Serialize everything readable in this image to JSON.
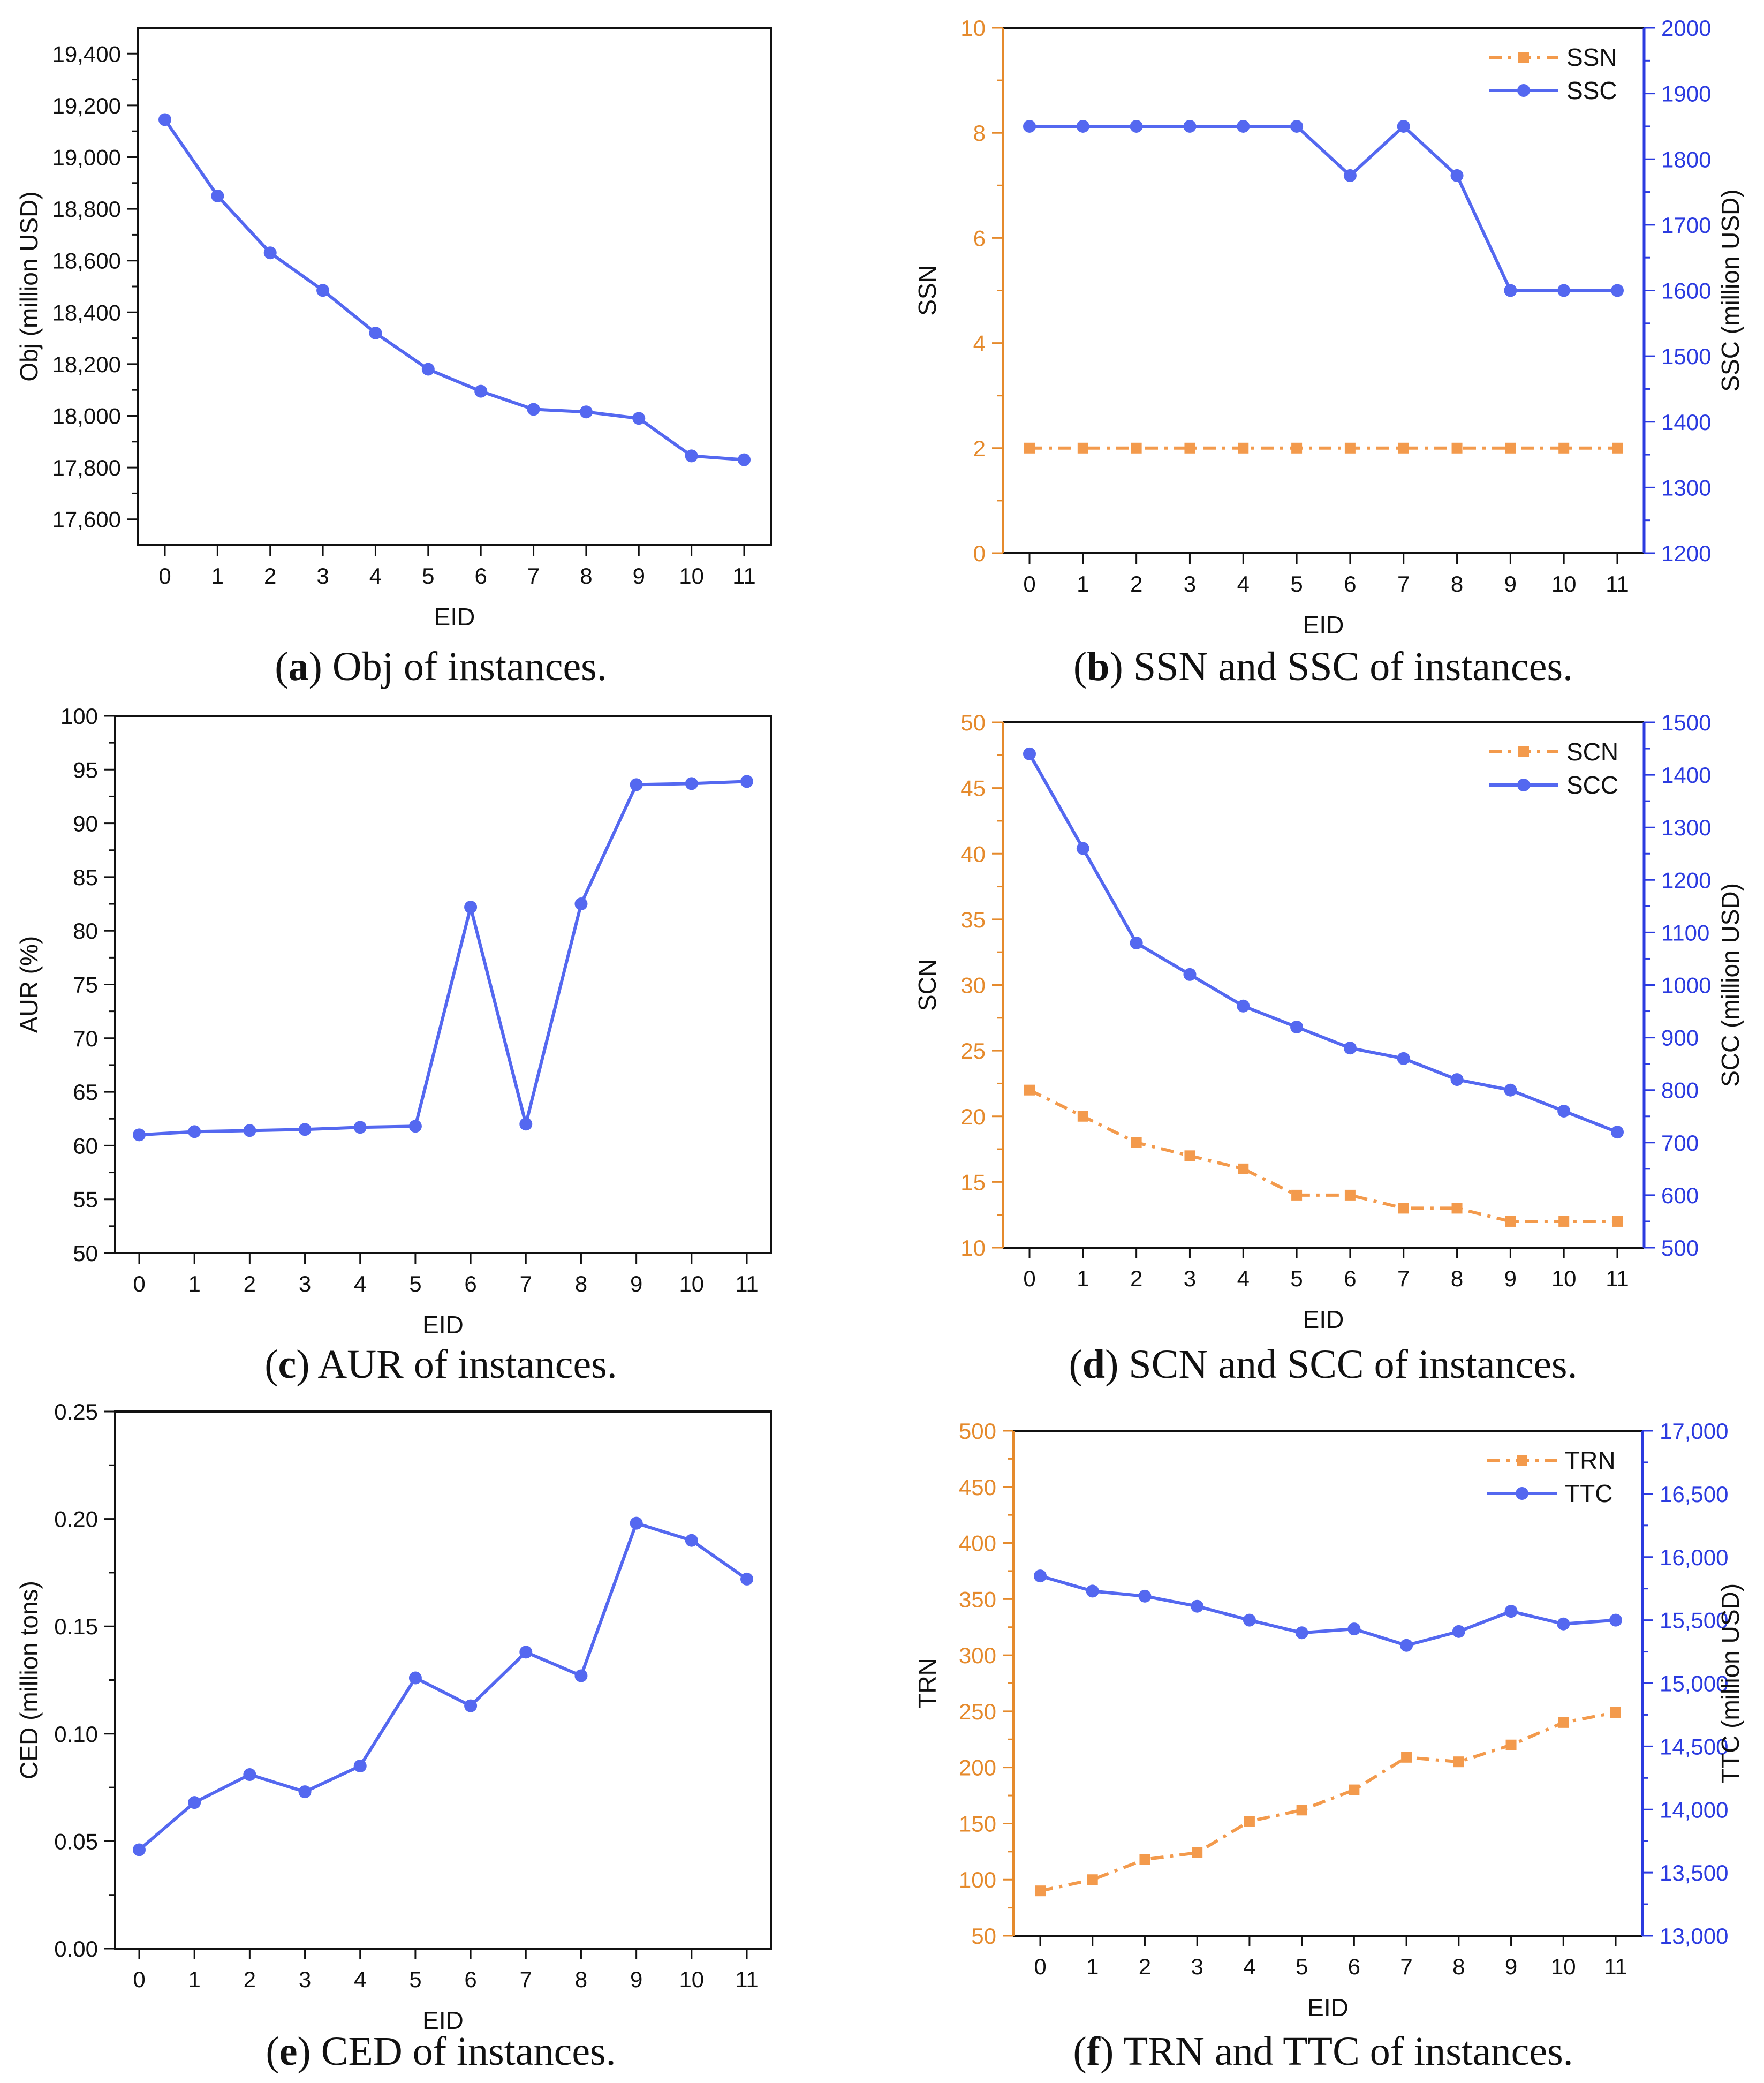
{
  "colors": {
    "primary": "#5468f0",
    "secondary": "#f39a4c",
    "axis_right": "#2b3be0",
    "axis_left": "#e58a2c",
    "ink": "#111111"
  },
  "chart_data": [
    {
      "id": "a",
      "type": "line",
      "dual_axis": false,
      "caption": {
        "letter": "a",
        "text": "Obj of instances."
      },
      "xlabel": "EID",
      "x": [
        0,
        1,
        2,
        3,
        4,
        5,
        6,
        7,
        8,
        9,
        10,
        11
      ],
      "y_left": {
        "label": "Obj (million USD)",
        "min": 17500,
        "max": 19500,
        "ticks": [
          17600,
          17800,
          18000,
          18200,
          18400,
          18600,
          18800,
          19000,
          19200,
          19400
        ],
        "tick_labels": [
          "17,600",
          "17,800",
          "18,000",
          "18,200",
          "18,400",
          "18,600",
          "18,800",
          "19,000",
          "19,200",
          "19,400"
        ]
      },
      "series": [
        {
          "name": "Obj",
          "axis": "left",
          "style": "line-circle",
          "values": [
            19145,
            18850,
            18630,
            18485,
            18320,
            18180,
            18095,
            18025,
            18015,
            17990,
            17845,
            17830
          ]
        }
      ]
    },
    {
      "id": "b",
      "type": "line",
      "dual_axis": true,
      "caption": {
        "letter": "b",
        "text": "SSN and SSC of instances."
      },
      "xlabel": "EID",
      "x": [
        0,
        1,
        2,
        3,
        4,
        5,
        6,
        7,
        8,
        9,
        10,
        11
      ],
      "y_left": {
        "label": "SSN",
        "min": 0,
        "max": 10,
        "ticks": [
          0,
          2,
          4,
          6,
          8,
          10
        ],
        "tick_labels": [
          "0",
          "2",
          "4",
          "6",
          "8",
          "10"
        ]
      },
      "y_right": {
        "label": "SSC (million USD)",
        "min": 1200,
        "max": 2000,
        "ticks": [
          1200,
          1300,
          1400,
          1500,
          1600,
          1700,
          1800,
          1900,
          2000
        ],
        "tick_labels": [
          "1200",
          "1300",
          "1400",
          "1500",
          "1600",
          "1700",
          "1800",
          "1900",
          "2000"
        ]
      },
      "series": [
        {
          "name": "SSN",
          "axis": "left",
          "style": "dashdot-square",
          "values": [
            2,
            2,
            2,
            2,
            2,
            2,
            2,
            2,
            2,
            2,
            2,
            2
          ]
        },
        {
          "name": "SSC",
          "axis": "right",
          "style": "line-circle",
          "values": [
            1850,
            1850,
            1850,
            1850,
            1850,
            1850,
            1775,
            1850,
            1775,
            1600,
            1600,
            1600
          ]
        }
      ]
    },
    {
      "id": "c",
      "type": "line",
      "dual_axis": false,
      "caption": {
        "letter": "c",
        "text": "AUR of instances."
      },
      "xlabel": "EID",
      "x": [
        0,
        1,
        2,
        3,
        4,
        5,
        6,
        7,
        8,
        9,
        10,
        11
      ],
      "y_left": {
        "label": "AUR (%)",
        "min": 50,
        "max": 100,
        "ticks": [
          50,
          55,
          60,
          65,
          70,
          75,
          80,
          85,
          90,
          95,
          100
        ],
        "tick_labels": [
          "50",
          "55",
          "60",
          "65",
          "70",
          "75",
          "80",
          "85",
          "90",
          "95",
          "100"
        ]
      },
      "series": [
        {
          "name": "AUR",
          "axis": "left",
          "style": "line-circle",
          "values": [
            61.0,
            61.3,
            61.4,
            61.5,
            61.7,
            61.8,
            82.2,
            62.0,
            82.5,
            93.6,
            93.7,
            93.9
          ]
        }
      ]
    },
    {
      "id": "d",
      "type": "line",
      "dual_axis": true,
      "caption": {
        "letter": "d",
        "text": "SCN and SCC of instances."
      },
      "xlabel": "EID",
      "x": [
        0,
        1,
        2,
        3,
        4,
        5,
        6,
        7,
        8,
        9,
        10,
        11
      ],
      "y_left": {
        "label": "SCN",
        "min": 10,
        "max": 50,
        "ticks": [
          10,
          15,
          20,
          25,
          30,
          35,
          40,
          45,
          50
        ],
        "tick_labels": [
          "10",
          "15",
          "20",
          "25",
          "30",
          "35",
          "40",
          "45",
          "50"
        ]
      },
      "y_right": {
        "label": "SCC (million USD)",
        "min": 500,
        "max": 1500,
        "ticks": [
          500,
          600,
          700,
          800,
          900,
          1000,
          1100,
          1200,
          1300,
          1400,
          1500
        ],
        "tick_labels": [
          "500",
          "600",
          "700",
          "800",
          "900",
          "1000",
          "1100",
          "1200",
          "1300",
          "1400",
          "1500"
        ]
      },
      "series": [
        {
          "name": "SCN",
          "axis": "left",
          "style": "dashdot-square",
          "values": [
            22,
            20,
            18,
            17,
            16,
            14,
            14,
            13,
            13,
            12,
            12,
            12
          ]
        },
        {
          "name": "SCC",
          "axis": "right",
          "style": "line-circle",
          "values": [
            1440,
            1260,
            1080,
            1020,
            960,
            920,
            880,
            860,
            820,
            800,
            760,
            720
          ]
        }
      ]
    },
    {
      "id": "e",
      "type": "line",
      "dual_axis": false,
      "caption": {
        "letter": "e",
        "text": "CED of instances."
      },
      "xlabel": "EID",
      "x": [
        0,
        1,
        2,
        3,
        4,
        5,
        6,
        7,
        8,
        9,
        10,
        11
      ],
      "y_left": {
        "label": "CED (million tons)",
        "min": 0,
        "max": 0.25,
        "ticks": [
          0,
          0.05,
          0.1,
          0.15,
          0.2,
          0.25
        ],
        "tick_labels": [
          "0.00",
          "0.05",
          "0.10",
          "0.15",
          "0.20",
          "0.25"
        ]
      },
      "series": [
        {
          "name": "CED",
          "axis": "left",
          "style": "line-circle",
          "values": [
            0.046,
            0.068,
            0.081,
            0.073,
            0.085,
            0.126,
            0.113,
            0.138,
            0.127,
            0.198,
            0.19,
            0.172
          ]
        }
      ]
    },
    {
      "id": "f",
      "type": "line",
      "dual_axis": true,
      "caption": {
        "letter": "f",
        "text": "TRN and TTC of instances."
      },
      "xlabel": "EID",
      "x": [
        0,
        1,
        2,
        3,
        4,
        5,
        6,
        7,
        8,
        9,
        10,
        11
      ],
      "y_left": {
        "label": "TRN",
        "min": 50,
        "max": 500,
        "ticks": [
          50,
          100,
          150,
          200,
          250,
          300,
          350,
          400,
          450,
          500
        ],
        "tick_labels": [
          "50",
          "100",
          "150",
          "200",
          "250",
          "300",
          "350",
          "400",
          "450",
          "500"
        ]
      },
      "y_right": {
        "label": "TTC (million USD)",
        "min": 13000,
        "max": 17000,
        "ticks": [
          13000,
          13500,
          14000,
          14500,
          15000,
          15500,
          16000,
          16500,
          17000
        ],
        "tick_labels": [
          "13,000",
          "13,500",
          "14,000",
          "14,500",
          "15,000",
          "15,500",
          "16,000",
          "16,500",
          "17,000"
        ]
      },
      "series": [
        {
          "name": "TRN",
          "axis": "left",
          "style": "dashdot-square",
          "values": [
            90,
            100,
            118,
            124,
            152,
            162,
            180,
            209,
            205,
            220,
            240,
            249
          ]
        },
        {
          "name": "TTC",
          "axis": "right",
          "style": "line-circle",
          "values": [
            15850,
            15730,
            15690,
            15610,
            15500,
            15400,
            15430,
            15300,
            15410,
            15570,
            15470,
            15500
          ]
        }
      ]
    }
  ]
}
